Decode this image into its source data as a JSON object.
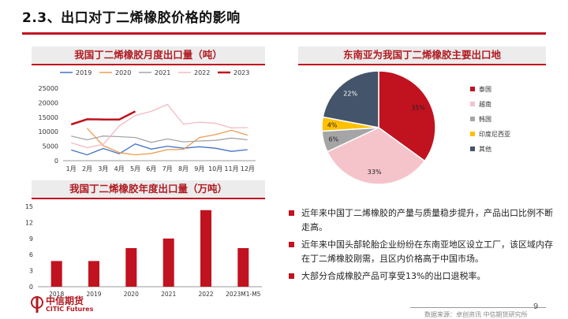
{
  "page": {
    "title": "2.3、出口对丁二烯橡胶价格的影响",
    "page_number": "9",
    "footer_source": "数据来源：卓创资讯 中信期货研究所",
    "logo_cn": "中信期货",
    "logo_en": "CITIC Futures"
  },
  "colors": {
    "accent": "#c1121f"
  },
  "panels": {
    "monthly_title": "我国丁二烯橡胶月度出口量（吨）",
    "pie_title": "东南亚为我国丁二烯橡胶主要出口地",
    "annual_title": "我国丁二烯橡胶年度出口量（万吨）"
  },
  "bullets": [
    "近年来中国丁二烯橡胶的产量与质量稳步提升，产品出口比例不断走高。",
    "近年来中国头部轮胎企业纷纷在东南亚地区设立工厂，该区域内存在丁二烯橡胶刚需，且区内价格高于中国市场。",
    "大部分合成橡胶产品可享受13%的出口退税率。"
  ],
  "chart_data": [
    {
      "type": "line",
      "title": "我国丁二烯橡胶月度出口量（吨）",
      "categories": [
        "1月",
        "2月",
        "3月",
        "4月",
        "5月",
        "6月",
        "7月",
        "8月",
        "9月",
        "10月",
        "11月",
        "12月"
      ],
      "ylim": [
        0,
        25000
      ],
      "yticks": [
        "0",
        "5000",
        "10000",
        "15000",
        "20000",
        "25000"
      ],
      "legend_position": "top",
      "series": [
        {
          "name": "2019",
          "color": "#4472c4",
          "values": [
            3700,
            2000,
            4200,
            2400,
            5800,
            4000,
            5000,
            4300,
            4800,
            4300,
            3200,
            3800
          ]
        },
        {
          "name": "2020",
          "color": "#ed9c52",
          "values": [
            null,
            11200,
            5200,
            2800,
            2000,
            2500,
            3800,
            3900,
            8000,
            9000,
            10500,
            8800
          ]
        },
        {
          "name": "2021",
          "color": "#a5a5a5",
          "values": [
            8500,
            7200,
            8500,
            8300,
            8000,
            6300,
            7500,
            6500,
            6800,
            7000,
            7800,
            7200
          ]
        },
        {
          "name": "2022",
          "color": "#f4b9c3",
          "values": [
            6200,
            4500,
            5600,
            12000,
            15600,
            17000,
            19400,
            12600,
            13300,
            12900,
            11300,
            11400
          ]
        },
        {
          "name": "2023",
          "color": "#c1121f",
          "values": [
            12500,
            14300,
            14200,
            14200,
            17000,
            null,
            null,
            null,
            null,
            null,
            null,
            null
          ]
        }
      ]
    },
    {
      "type": "pie",
      "title": "东南亚为我国丁二烯橡胶主要出口地",
      "legend_position": "right",
      "slices": [
        {
          "name": "泰国",
          "value": 35,
          "label": "35%",
          "color": "#c1121f"
        },
        {
          "name": "越南",
          "value": 33,
          "label": "33%",
          "color": "#f5c4ca"
        },
        {
          "name": "韩国",
          "value": 6,
          "label": "6%",
          "color": "#a5a5a5"
        },
        {
          "name": "印度尼西亚",
          "value": 4,
          "label": "4%",
          "color": "#ffc000"
        },
        {
          "name": "其他",
          "value": 22,
          "label": "22%",
          "color": "#44546a"
        }
      ]
    },
    {
      "type": "bar",
      "title": "我国丁二烯橡胶年度出口量（万吨）",
      "categories": [
        "2018",
        "2019",
        "2020",
        "2021",
        "2022",
        "2023M1-M5"
      ],
      "values": [
        4.8,
        4.8,
        7.2,
        9.0,
        14.3,
        7.2
      ],
      "ylim": [
        0,
        15
      ],
      "yticks": [
        "0",
        "3",
        "6",
        "9",
        "12",
        "15"
      ],
      "color": "#c1121f"
    }
  ]
}
